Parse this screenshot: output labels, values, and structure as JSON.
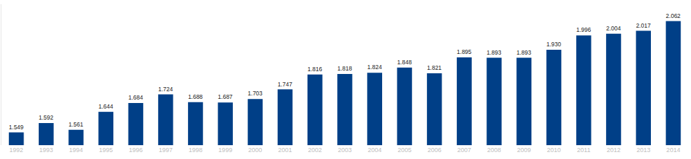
{
  "chart_data": {
    "type": "bar",
    "categories": [
      "1992",
      "1993",
      "1994",
      "1995",
      "1996",
      "1997",
      "1998",
      "1999",
      "2000",
      "2001",
      "2002",
      "2003",
      "2004",
      "2005",
      "2006",
      "2007",
      "2008",
      "2009",
      "2010",
      "2011",
      "2012",
      "2013",
      "2014"
    ],
    "values": [
      1.549,
      1.592,
      1.561,
      1.644,
      1.684,
      1.724,
      1.688,
      1.687,
      1.703,
      1.747,
      1.816,
      1.818,
      1.824,
      1.848,
      1.821,
      1.895,
      1.893,
      1.893,
      1.93,
      1.996,
      2.004,
      2.017,
      2.062
    ],
    "value_labels": [
      "1.549",
      "1.592",
      "1.561",
      "1.644",
      "1.684",
      "1.724",
      "1.688",
      "1.687",
      "1.703",
      "1.747",
      "1.816",
      "1.818",
      "1.824",
      "1.848",
      "1.821",
      "1.895",
      "1.893",
      "1.893",
      "1.930",
      "1.996",
      "2.004",
      "2.017",
      "2.062"
    ],
    "color": "#003f87",
    "ylim": [
      1.49,
      2.14
    ],
    "grid": false,
    "data_labels": true,
    "tick_labels": "x"
  }
}
